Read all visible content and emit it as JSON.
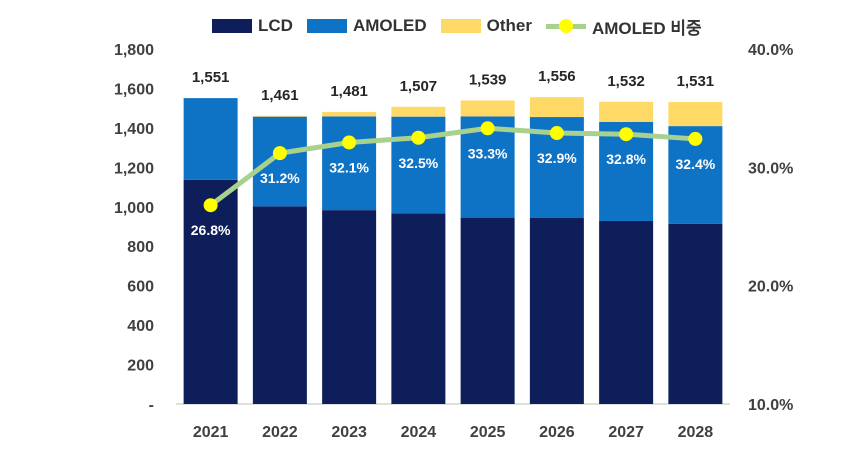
{
  "chart_data": {
    "type": "bar",
    "stacked": true,
    "categories": [
      "2021",
      "2022",
      "2023",
      "2024",
      "2025",
      "2026",
      "2027",
      "2028"
    ],
    "series": [
      {
        "name": "LCD",
        "color": "#0d1e5a",
        "values": [
          1137,
          1002,
          983,
          967,
          945,
          943,
          928,
          913
        ]
      },
      {
        "name": "AMOLED",
        "color": "#0f73c5",
        "values": [
          414,
          455,
          475,
          490,
          513,
          512,
          502,
          496
        ]
      },
      {
        "name": "Other",
        "color": "#ffd966",
        "values": [
          0,
          4,
          23,
          50,
          81,
          101,
          102,
          122
        ]
      }
    ],
    "totals": [
      1551,
      1461,
      1481,
      1507,
      1539,
      1556,
      1532,
      1531
    ],
    "total_labels": [
      "1,551",
      "1,461",
      "1,481",
      "1,507",
      "1,539",
      "1,556",
      "1,532",
      "1,531"
    ],
    "line": {
      "name": "AMOLED 비중",
      "line_color": "#a9d18e",
      "marker_color": "#ffff00",
      "values": [
        26.8,
        31.2,
        32.1,
        32.5,
        33.3,
        32.9,
        32.8,
        32.4
      ],
      "labels": [
        "26.8%",
        "31.2%",
        "32.1%",
        "32.5%",
        "33.3%",
        "32.9%",
        "32.8%",
        "32.4%"
      ]
    },
    "ylim": [
      0,
      1800
    ],
    "y_ticks": [
      0,
      200,
      400,
      600,
      800,
      1000,
      1200,
      1400,
      1600,
      1800
    ],
    "y_tick_labels": [
      "-",
      "200",
      "400",
      "600",
      "800",
      "1,000",
      "1,200",
      "1,400",
      "1,600",
      "1,800"
    ],
    "y2lim": [
      10,
      40
    ],
    "y2_ticks": [
      10,
      20,
      30,
      40
    ],
    "y2_tick_labels": [
      "10.0%",
      "20.0%",
      "30.0%",
      "40.0%"
    ],
    "legend_position": "top",
    "grid": false
  }
}
